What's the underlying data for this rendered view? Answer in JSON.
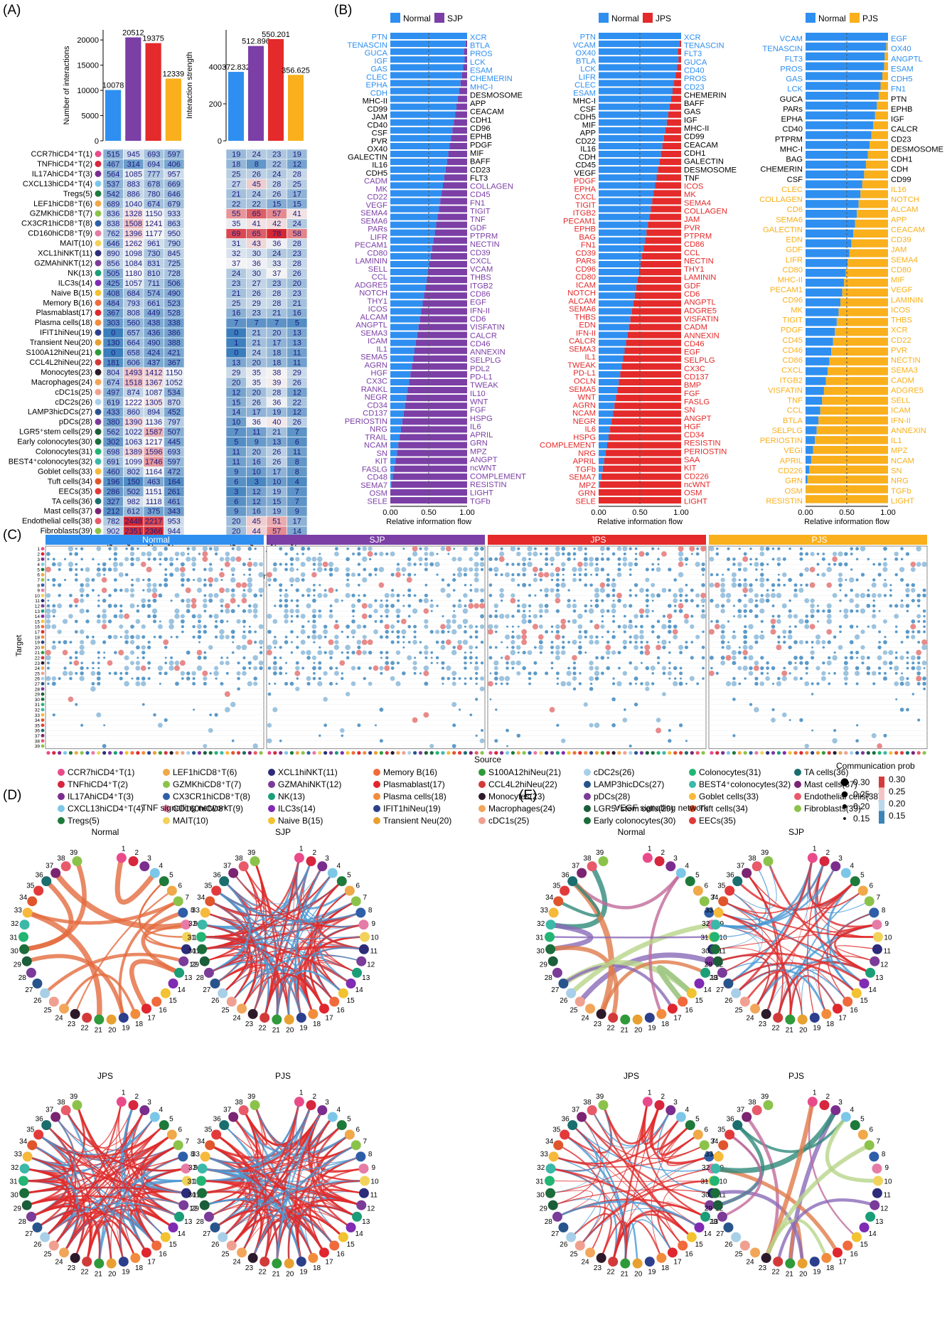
{
  "panels": {
    "A": "(A)",
    "B": "(B)",
    "C": "(C)",
    "D": "(D)",
    "E": "(E)"
  },
  "groups": [
    "Normal",
    "SJP",
    "JPS",
    "PJS"
  ],
  "colors": {
    "Normal": "#2e8ff0",
    "SJP": "#7b3fa6",
    "JPS": "#e42a2a",
    "PJS": "#f9b01c",
    "heat_low": "#3a7dbc",
    "heat_mid": "#f5f5f5",
    "heat_high": "#d62730"
  },
  "chart_data": [
    {
      "type": "bar",
      "id": "interactions",
      "ylabel": "Number of interactions",
      "categories": [
        "Normal",
        "SJP",
        "JPS",
        "PJS"
      ],
      "values": [
        10078,
        20512,
        19375,
        12339
      ],
      "labels": [
        "10078",
        "20512",
        "19375",
        "12339"
      ],
      "yticks": [
        "0",
        "5000",
        "10000",
        "15000",
        "20000"
      ],
      "ylim": [
        0,
        22000
      ]
    },
    {
      "type": "bar",
      "id": "strength",
      "ylabel": "Interaction strength",
      "categories": [
        "Normal",
        "SJP",
        "JPS",
        "PJS"
      ],
      "values": [
        372.832,
        512.896,
        550.201,
        356.625
      ],
      "labels": [
        "372.832",
        "512.896",
        "550.201",
        "356.625"
      ],
      "yticks": [
        "0",
        "200",
        "400"
      ],
      "ylim": [
        0,
        600
      ]
    },
    {
      "type": "heatmap",
      "id": "number",
      "legend_title": "Number",
      "legend_ticks": [
        "0",
        "500",
        "1000",
        "1500",
        "2000"
      ],
      "columns": [
        "Normal",
        "SJP",
        "JPS",
        "PJS"
      ],
      "rows": [
        "CCR7hiCD4⁺T(1)",
        "TNFhiCD4⁺T(2)",
        "IL17AhiCD4⁺T(3)",
        "CXCL13hiCD4⁺T(4)",
        "Tregs(5)",
        "LEF1hiCD8⁺T(6)",
        "GZMKhiCD8⁺T(7)",
        "CX3CR1hiCD8⁺T(8)",
        "CD160hiCD8⁺T(9)",
        "MAIT(10)",
        "XCL1hiNKT(11)",
        "GZMAhiNKT(12)",
        "NK(13)",
        "ILC3s(14)",
        "Naive B(15)",
        "Memory B(16)",
        "Plasmablast(17)",
        "Plasma cells(18)",
        "IFIT1hiNeu(19)",
        "Transient Neu(20)",
        "S100A12hiNeu(21)",
        "CCL4L2hiNeu(22)",
        "Monocytes(23)",
        "Macrophages(24)",
        "cDC1s(25)",
        "cDC2s(26)",
        "LAMP3hicDCs(27)",
        "pDCs(28)",
        "LGR5⁺stem cells(29)",
        "Early colonocytes(30)",
        "Colonocytes(31)",
        "BEST4⁺colonocytes(32)",
        "Goblet cells(33)",
        "Tuft cells(34)",
        "EECs(35)",
        "TA cells(36)",
        "Mast cells(37)",
        "Endothelial cells(38)",
        "Fibroblasts(39)"
      ],
      "values": [
        [
          515,
          945,
          693,
          597
        ],
        [
          467,
          314,
          694,
          406
        ],
        [
          564,
          1085,
          777,
          957
        ],
        [
          537,
          883,
          678,
          669
        ],
        [
          542,
          886,
          780,
          646
        ],
        [
          689,
          1040,
          674,
          679
        ],
        [
          836,
          1328,
          1150,
          933
        ],
        [
          838,
          1508,
          1241,
          863
        ],
        [
          762,
          1396,
          1177,
          950
        ],
        [
          646,
          1262,
          961,
          790
        ],
        [
          890,
          1098,
          730,
          845
        ],
        [
          856,
          1084,
          831,
          725
        ],
        [
          505,
          1180,
          810,
          728
        ],
        [
          425,
          1057,
          711,
          506
        ],
        [
          408,
          684,
          574,
          490
        ],
        [
          484,
          793,
          661,
          523
        ],
        [
          367,
          808,
          449,
          528
        ],
        [
          303,
          560,
          438,
          338
        ],
        [
          0,
          657,
          436,
          386
        ],
        [
          130,
          664,
          490,
          388
        ],
        [
          0,
          658,
          424,
          421
        ],
        [
          181,
          606,
          437,
          367
        ],
        [
          804,
          1493,
          1412,
          1150
        ],
        [
          674,
          1518,
          1367,
          1052
        ],
        [
          497,
          874,
          1087,
          534
        ],
        [
          619,
          1222,
          1305,
          870
        ],
        [
          433,
          860,
          894,
          452
        ],
        [
          380,
          1390,
          1136,
          797
        ],
        [
          562,
          1022,
          1587,
          507
        ],
        [
          302,
          1063,
          1217,
          445
        ],
        [
          698,
          1389,
          1596,
          693
        ],
        [
          691,
          1099,
          1746,
          597
        ],
        [
          460,
          802,
          1164,
          472
        ],
        [
          196,
          150,
          463,
          164
        ],
        [
          286,
          502,
          1151,
          261
        ],
        [
          327,
          982,
          1118,
          461
        ],
        [
          212,
          612,
          375,
          343
        ],
        [
          782,
          2448,
          2217,
          953
        ],
        [
          902,
          2351,
          2366,
          944
        ]
      ]
    },
    {
      "type": "heatmap",
      "id": "strength_heat",
      "legend_title": "Strength",
      "legend_ticks": [
        "0",
        "20",
        "40",
        "60"
      ],
      "columns": [
        "Normal",
        "SJP",
        "JPS",
        "PJS"
      ],
      "values": [
        [
          19,
          24,
          23,
          19
        ],
        [
          18,
          8,
          22,
          12
        ],
        [
          25,
          26,
          24,
          28
        ],
        [
          27,
          45,
          28,
          25
        ],
        [
          21,
          24,
          26,
          17
        ],
        [
          22,
          22,
          15,
          15
        ],
        [
          55,
          65,
          57,
          41
        ],
        [
          35,
          41,
          42,
          24
        ],
        [
          69,
          65,
          78,
          58
        ],
        [
          31,
          43,
          36,
          28
        ],
        [
          32,
          30,
          24,
          23
        ],
        [
          37,
          36,
          33,
          28
        ],
        [
          24,
          30,
          37,
          26
        ],
        [
          23,
          27,
          23,
          20
        ],
        [
          21,
          26,
          28,
          23
        ],
        [
          25,
          29,
          28,
          21
        ],
        [
          16,
          23,
          21,
          16
        ],
        [
          7,
          7,
          7,
          5
        ],
        [
          0,
          21,
          20,
          13
        ],
        [
          1,
          21,
          17,
          13
        ],
        [
          0,
          24,
          18,
          11
        ],
        [
          13,
          20,
          18,
          11
        ],
        [
          29,
          35,
          38,
          29
        ],
        [
          20,
          35,
          39,
          26
        ],
        [
          12,
          20,
          28,
          12
        ],
        [
          15,
          26,
          36,
          22
        ],
        [
          14,
          17,
          19,
          12
        ],
        [
          10,
          36,
          40,
          26
        ],
        [
          7,
          11,
          21,
          7
        ],
        [
          5,
          9,
          13,
          6
        ],
        [
          11,
          20,
          26,
          11
        ],
        [
          11,
          16,
          26,
          8
        ],
        [
          9,
          10,
          17,
          8
        ],
        [
          6,
          3,
          10,
          4
        ],
        [
          3,
          12,
          19,
          7
        ],
        [
          6,
          12,
          15,
          7
        ],
        [
          9,
          16,
          19,
          9
        ],
        [
          20,
          45,
          51,
          17
        ],
        [
          20,
          44,
          57,
          14
        ]
      ]
    },
    {
      "type": "bar",
      "id": "flow_SJP",
      "xlabel": "Relative information flow",
      "xticks": [
        "0.00",
        "0.50",
        "1.00"
      ],
      "legend": [
        "Normal",
        "SJP"
      ],
      "left_labels": [
        "PTN",
        "TENASCIN",
        "GUCA",
        "IGF",
        "GAS",
        "CLEC",
        "EPHA",
        "CDH",
        "MHC-II",
        "CD99",
        "JAM",
        "CD40",
        "CSF",
        "PVR",
        "OX40",
        "GALECTIN",
        "IL16",
        "CDH5",
        "CADM",
        "MK",
        "CD22",
        "VEGF",
        "SEMA4",
        "SEMA6",
        "PARs",
        "LIFR",
        "PECAM1",
        "CD80",
        "LAMININ",
        "SELL",
        "CCL",
        "ADGRE5",
        "NOTCH",
        "THY1",
        "ICOS",
        "ALCAM",
        "ANGPTL",
        "SEMA3",
        "ICAM",
        "IL1",
        "SEMA5",
        "AGRN",
        "HGF",
        "CX3C",
        "RANKL",
        "NEGR",
        "CD34",
        "CD137",
        "PERIOSTIN",
        "NRG",
        "TRAIL",
        "NCAM",
        "SN",
        "KIT",
        "FASLG",
        "CD48",
        "SEMA7",
        "OSM",
        "SELE"
      ],
      "right_labels": [
        "XCR",
        "BTLA",
        "PROS",
        "LCK",
        "ESAM",
        "CHEMERIN",
        "MHC-I",
        "DESMOSOME",
        "APP",
        "CEACAM",
        "CDH1",
        "CD96",
        "EPHB",
        "PDGF",
        "MIF",
        "BAFF",
        "CD23",
        "FLT3",
        "COLLAGEN",
        "CD45",
        "FN1",
        "TIGIT",
        "TNF",
        "GDF",
        "PTPRM",
        "NECTIN",
        "CD39",
        "CXCL",
        "VCAM",
        "THBS",
        "ITGB2",
        "CD86",
        "EGF",
        "IFN-II",
        "CD6",
        "VISFATIN",
        "CALCR",
        "CD46",
        "ANNEXIN",
        "SELPLG",
        "PDL2",
        "PD-L1",
        "TWEAK",
        "IL10",
        "WNT",
        "FGF",
        "HSPG",
        "IL6",
        "APRIL",
        "GRN",
        "MPZ",
        "ANGPT",
        "ncWNT",
        "COMPLEMENT",
        "RESISTIN",
        "LIGHT",
        "TGFb"
      ]
    },
    {
      "type": "bar",
      "id": "flow_JPS",
      "xlabel": "Relative information flow",
      "xticks": [
        "0.00",
        "0.50",
        "1.00"
      ],
      "legend": [
        "Normal",
        "JPS"
      ],
      "left_labels": [
        "PTN",
        "VCAM",
        "OX40",
        "BTLA",
        "LCK",
        "LIFR",
        "CLEC",
        "ESAM",
        "MHC-I",
        "CSF",
        "CDH5",
        "MIF",
        "APP",
        "CD22",
        "IL16",
        "CDH",
        "CD45",
        "VEGF",
        "PDGF",
        "EPHA",
        "CXCL",
        "TIGIT",
        "ITGB2",
        "PECAM1",
        "EPHB",
        "BAG",
        "FN1",
        "CD39",
        "PARs",
        "CD96",
        "CD80",
        "ICAM",
        "NOTCH",
        "ALCAM",
        "SEMA6",
        "THBS",
        "EDN",
        "IFN-II",
        "CALCR",
        "SEMA3",
        "IL1",
        "TWEAK",
        "PD-L1",
        "OCLN",
        "SEMA5",
        "WNT",
        "AGRN",
        "NCAM",
        "NEGR",
        "IL6",
        "HSPG",
        "COMPLEMENT",
        "NRG",
        "APRIL",
        "TGFb",
        "SEMA7",
        "MPZ",
        "GRN",
        "SELE"
      ],
      "right_labels": [
        "XCR",
        "TENASCIN",
        "FLT3",
        "GUCA",
        "CD40",
        "PROS",
        "CD23",
        "CHEMERIN",
        "BAFF",
        "GAS",
        "IGF",
        "MHC-II",
        "CD99",
        "CEACAM",
        "CDH1",
        "GALECTIN",
        "DESMOSOME",
        "TNF",
        "ICOS",
        "MK",
        "SEMA4",
        "COLLAGEN",
        "JAM",
        "PVR",
        "PTPRM",
        "CD86",
        "CCL",
        "NECTIN",
        "THY1",
        "LAMININ",
        "GDF",
        "CD6",
        "ANGPTL",
        "ADGRE5",
        "VISFATIN",
        "CADM",
        "ANNEXIN",
        "CD46",
        "EGF",
        "SELPLG",
        "CX3C",
        "CD137",
        "BMP",
        "FGF",
        "FASLG",
        "SN",
        "ANGPT",
        "HGF",
        "CD34",
        "RESISTIN",
        "PERIOSTIN",
        "SAA",
        "KIT",
        "CD226",
        "ncWNT",
        "OSM",
        "LIGHT"
      ]
    },
    {
      "type": "bar",
      "id": "flow_PJS",
      "xlabel": "Relative information flow",
      "xticks": [
        "0.00",
        "0.50",
        "1.00"
      ],
      "legend": [
        "Normal",
        "PJS"
      ],
      "left_labels": [
        "VCAM",
        "TENASCIN",
        "FLT3",
        "PROS",
        "GAS",
        "LCK",
        "GUCA",
        "PARs",
        "EPHA",
        "CD40",
        "PTPRM",
        "MHC-I",
        "BAG",
        "CHEMERIN",
        "CSF",
        "CLEC",
        "COLLAGEN",
        "CD6",
        "SEMA6",
        "GALECTIN",
        "EDN",
        "GDF",
        "LIFR",
        "CD80",
        "MHC-II",
        "PECAM1",
        "CD96",
        "MK",
        "TIGIT",
        "PDGF",
        "CD45",
        "CD46",
        "CD86",
        "CXCL",
        "ITGB2",
        "VISFATIN",
        "TNF",
        "CCL",
        "BTLA",
        "SELPLG",
        "PERIOSTIN",
        "VEGI",
        "APRIL",
        "CD226",
        "GRN",
        "OSM",
        "RESISTIN"
      ],
      "right_labels": [
        "EGF",
        "OX40",
        "ANGPTL",
        "ESAM",
        "CDH5",
        "FN1",
        "PTN",
        "EPHB",
        "IGF",
        "CALCR",
        "CD23",
        "DESMOSOME",
        "CDH1",
        "CDH",
        "CD99",
        "IL16",
        "NOTCH",
        "ALCAM",
        "APP",
        "CEACAM",
        "CD39",
        "JAM",
        "SEMA4",
        "CD80",
        "MIF",
        "VEGF",
        "LAMININ",
        "ICOS",
        "THBS",
        "XCR",
        "CD22",
        "PVR",
        "NECTIN",
        "SEMA3",
        "CADM",
        "ADGRE5",
        "SELL",
        "ICAM",
        "IFN-II",
        "ANNEXIN",
        "IL1",
        "MPZ",
        "NCAM",
        "SN",
        "NRG",
        "TGFb",
        "LIGHT"
      ]
    },
    {
      "type": "scatter",
      "id": "dotplot",
      "xlabel": "Source",
      "ylabel": "Target",
      "legend_title": "Communication prob",
      "size_ticks": [
        "0.30",
        "0.25",
        "0.20",
        "0.15"
      ],
      "color_ticks": [
        "0.30",
        "0.25",
        "0.20",
        "0.15"
      ]
    }
  ],
  "cell_legend": [
    "CCR7hiCD4⁺T(1)",
    "TNFhiCD4⁺T(2)",
    "IL17AhiCD4⁺T(3)",
    "CXCL13hiCD4⁺T(4)",
    "Tregs(5)",
    "LEF1hiCD8⁺T(6)",
    "GZMKhiCD8⁺T(7)",
    "CX3CR1hiCD8⁺T(8)",
    "CD160hiCD8⁺T(9)",
    "MAIT(10)",
    "XCL1hiNKT(11)",
    "GZMAhiNKT(12)",
    "NK(13)",
    "ILC3s(14)",
    "Naive B(15)",
    "Memory B(16)",
    "Plasmablast(17)",
    "Plasma cells(18)",
    "IFIT1hiNeu(19)",
    "Transient Neu(20)",
    "S100A12hiNeu(21)",
    "CCL4L2hiNeu(22)",
    "Monocytes(23)",
    "Macrophages(24)",
    "cDC1s(25)",
    "cDC2s(26)",
    "LAMP3hicDCs(27)",
    "pDCs(28)",
    "LGR5⁺stem cells(29)",
    "Early colonocytes(30)",
    "Colonocytes(31)",
    "BEST4⁺colonocytes(32)",
    "Goblet cells(33)",
    "Tuft cells(34)",
    "EECs(35)",
    "TA cells(36)",
    "Mast cells(37)",
    "Endothelial cells(38)",
    "Fibroblasts(39)"
  ],
  "cell_colors": [
    "#e94b8a",
    "#d7263d",
    "#7b2d8e",
    "#7cc7e8",
    "#1d7a3a",
    "#f0a848",
    "#8bc34a",
    "#2e5ea8",
    "#e57ba6",
    "#f2d25a",
    "#2c2c7a",
    "#7b3b98",
    "#1a9e77",
    "#7f2bb3",
    "#f2c230",
    "#f06a3c",
    "#e0262e",
    "#f28c3c",
    "#2b3f8c",
    "#e8a030",
    "#2f9a3a",
    "#d23a3a",
    "#2c1a2a",
    "#f2a65a",
    "#f0a090",
    "#a8cfe8",
    "#28548c",
    "#7b3b98",
    "#1b5e3a",
    "#1b6e3a",
    "#22b573",
    "#3bb8a8",
    "#f6b93a",
    "#e0552c",
    "#e23a3a",
    "#1a6e6e",
    "#7b2472",
    "#e85a6a",
    "#8bc34a"
  ],
  "networks": {
    "D_title": "TNF signalling network",
    "E_title": "VEGF signalling network",
    "titles": [
      "Normal",
      "SJP",
      "JPS",
      "PJS"
    ]
  }
}
